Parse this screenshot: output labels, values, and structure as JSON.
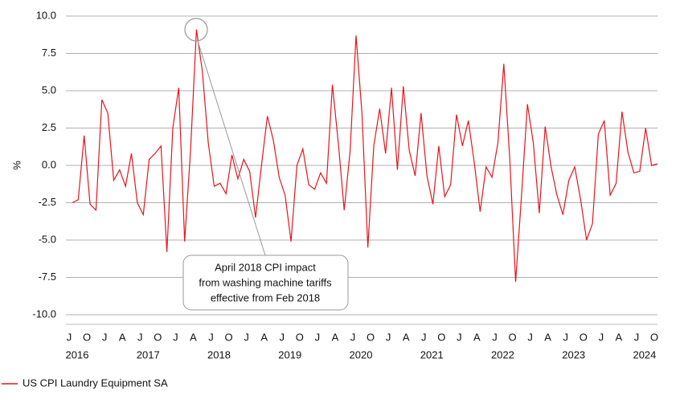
{
  "chart_data": {
    "type": "line",
    "y_label": "%",
    "ylim": [
      -10,
      10
    ],
    "yticks": [
      {
        "value": -10,
        "label": "-10.0"
      },
      -7.5,
      {
        "value": -5,
        "label": "-5.0"
      },
      -2.5,
      {
        "value": 0,
        "label": "0.0"
      },
      2.5,
      {
        "value": 5,
        "label": "5.0"
      },
      7.5,
      {
        "value": 10,
        "label": "10.0"
      }
    ],
    "grid": true,
    "categories": [
      "J",
      null,
      null,
      "O",
      null,
      null,
      "J",
      null,
      null,
      "A",
      null,
      null,
      "J",
      null,
      null,
      "O",
      null,
      null,
      "J",
      null,
      null,
      "A",
      null,
      null,
      "J",
      null,
      null,
      "O",
      null,
      null,
      "J",
      null,
      null,
      "A",
      null,
      null,
      "J",
      null,
      null,
      "O",
      null,
      null,
      "J",
      null,
      null,
      "A",
      null,
      null,
      "J",
      null,
      null,
      "O",
      null,
      null,
      "J",
      null,
      null,
      "A",
      null,
      null,
      "J",
      null,
      null,
      "O",
      null,
      null,
      "J",
      null,
      null,
      "A",
      null,
      null,
      "J",
      null,
      null,
      "O",
      null,
      null,
      "J",
      null,
      null,
      "A",
      null,
      null,
      "J",
      null,
      null,
      "O",
      null,
      null,
      "J",
      null,
      null,
      "A",
      null,
      null,
      "J",
      null,
      null,
      "O"
    ],
    "year_labels": [
      "2016",
      null,
      null,
      null,
      null,
      null,
      null,
      null,
      null,
      null,
      null,
      null,
      "2017",
      null,
      null,
      null,
      null,
      null,
      null,
      null,
      null,
      null,
      null,
      null,
      "2018",
      null,
      null,
      null,
      null,
      null,
      null,
      null,
      null,
      null,
      null,
      null,
      "2019",
      null,
      null,
      null,
      null,
      null,
      null,
      null,
      null,
      null,
      null,
      null,
      "2020",
      null,
      null,
      null,
      null,
      null,
      null,
      null,
      null,
      null,
      null,
      null,
      "2021",
      null,
      null,
      null,
      null,
      null,
      null,
      null,
      null,
      null,
      null,
      null,
      "2022",
      null,
      null,
      null,
      null,
      null,
      null,
      null,
      null,
      null,
      null,
      null,
      "2023",
      null,
      null,
      null,
      null,
      null,
      null,
      null,
      null,
      null,
      null,
      null,
      "2024",
      null,
      null,
      null
    ],
    "series": [
      {
        "name": "US CPI Laundry Equipment SA",
        "color": "#e8141c",
        "values": [
          -2.5,
          -2.3,
          2.0,
          -2.6,
          -3.0,
          4.4,
          3.5,
          -1.0,
          -0.3,
          -1.4,
          0.8,
          -2.5,
          -3.3,
          0.4,
          0.8,
          1.3,
          -5.8,
          2.5,
          5.2,
          -5.1,
          1.0,
          9.1,
          6.3,
          1.5,
          -1.4,
          -1.2,
          -1.9,
          0.7,
          -0.9,
          0.4,
          -0.4,
          -3.5,
          0.0,
          3.3,
          1.7,
          -0.8,
          -2.0,
          -5.1,
          0.0,
          1.1,
          -1.3,
          -1.6,
          -0.5,
          -1.2,
          5.4,
          1.5,
          -3.0,
          1.0,
          8.7,
          3.5,
          -5.5,
          1.3,
          3.8,
          0.8,
          5.2,
          -0.3,
          5.3,
          1.0,
          -0.7,
          3.5,
          -0.7,
          -2.6,
          1.3,
          -2.1,
          -1.3,
          3.4,
          1.3,
          3.0,
          0.2,
          -3.1,
          -0.1,
          -0.8,
          1.5,
          6.8,
          0.5,
          -7.8,
          -2.0,
          4.1,
          1.5,
          -3.2,
          2.6,
          -0.1,
          -2.0,
          -3.3,
          -1.0,
          -0.1,
          -2.3,
          -5.0,
          -3.9,
          2.1,
          3.0,
          -2.0,
          -1.2,
          3.6,
          0.9,
          -0.5,
          -0.4,
          2.5,
          0.0,
          0.1
        ]
      }
    ],
    "annotation": [
      "April 2018 CPI impact",
      "from washing machine tariffs",
      "effective from Feb 2018"
    ]
  }
}
